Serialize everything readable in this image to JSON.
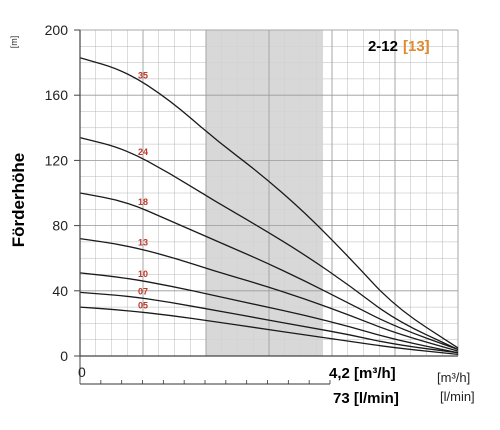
{
  "chart_data": {
    "type": "line",
    "title": "2-12",
    "title_accent": "[13]",
    "ylabel": "Förderhöhe",
    "yunit": "[m]",
    "ylim": [
      0,
      200
    ],
    "yticks": [
      "200",
      "160",
      "120",
      "80",
      "40",
      "0"
    ],
    "xtick_zero": "0",
    "grid": true,
    "highlight_band": true,
    "x_max_value_1": "4,2 [m³/h]",
    "x_unit_1": "[m³/h]",
    "x_max_value_2": "73 [l/min]",
    "x_unit_2": "[l/min]",
    "xlim_m3h": [
      0,
      4.2
    ],
    "highlight_range_m3h": [
      1.4,
      2.7
    ],
    "colors": {
      "curve": "#1a1a1a",
      "curve_label": "#c0392b",
      "band": "#d4d4d4",
      "grid": "#b8b8b8",
      "accent": "#e08a2b"
    },
    "series": [
      {
        "name": "35",
        "x": [
          0,
          0.5,
          1.0,
          1.5,
          2.0,
          2.5,
          3.0,
          3.5,
          4.2
        ],
        "y": [
          183,
          175,
          157,
          133,
          112,
          88,
          60,
          30,
          5
        ]
      },
      {
        "name": "24",
        "x": [
          0,
          0.5,
          1.0,
          1.5,
          2.0,
          2.5,
          3.0,
          3.5,
          4.2
        ],
        "y": [
          134,
          127,
          112,
          95,
          79,
          62,
          43,
          22,
          4
        ]
      },
      {
        "name": "18",
        "x": [
          0,
          0.5,
          1.0,
          1.5,
          2.0,
          2.5,
          3.0,
          3.5,
          4.2
        ],
        "y": [
          100,
          95,
          83,
          71,
          59,
          46,
          32,
          18,
          4
        ]
      },
      {
        "name": "13",
        "x": [
          0,
          0.5,
          1.0,
          1.5,
          2.0,
          2.5,
          3.0,
          3.5,
          4.2
        ],
        "y": [
          72,
          68,
          61,
          52,
          44,
          35,
          25,
          14,
          3
        ]
      },
      {
        "name": "10",
        "x": [
          0,
          0.5,
          1.0,
          1.5,
          2.0,
          2.5,
          3.0,
          3.5,
          4.2
        ],
        "y": [
          51,
          48,
          43,
          37,
          31,
          25,
          18,
          10,
          2
        ]
      },
      {
        "name": "07",
        "x": [
          0,
          0.5,
          1.0,
          1.5,
          2.0,
          2.5,
          3.0,
          3.5,
          4.2
        ],
        "y": [
          39,
          37,
          33,
          28,
          23,
          18,
          13,
          7,
          2
        ]
      },
      {
        "name": "05",
        "x": [
          0,
          0.5,
          1.0,
          1.5,
          2.0,
          2.5,
          3.0,
          3.5,
          4.2
        ],
        "y": [
          30,
          28,
          25,
          21,
          17,
          13,
          9,
          5,
          1
        ]
      }
    ]
  }
}
